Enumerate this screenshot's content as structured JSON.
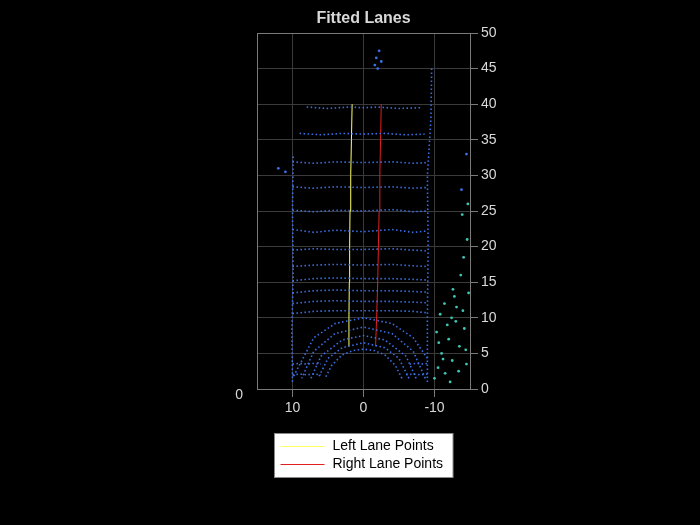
{
  "chart_data": {
    "type": "scatter",
    "title": "Fitted Lanes",
    "xlim": [
      15,
      -15
    ],
    "xticks": [
      10,
      0,
      -10
    ],
    "ylim": [
      0,
      50
    ],
    "yticks": [
      0,
      5,
      10,
      15,
      20,
      25,
      30,
      35,
      40,
      45,
      50
    ],
    "zticks": [
      0
    ],
    "grid": true,
    "legend": "bottom",
    "series": [
      {
        "name": "Left Lane Points",
        "color": "#ffff66",
        "line_style": "solid",
        "x": [
          2.1,
          2.05,
          2.0,
          1.95,
          1.9,
          1.8,
          1.7,
          1.6
        ],
        "y": [
          6,
          10,
          15,
          20,
          25,
          30,
          35,
          40
        ]
      },
      {
        "name": "Right Lane Points",
        "color": "#e0201e",
        "line_style": "solid",
        "x": [
          -1.7,
          -1.85,
          -2.0,
          -2.1,
          -2.2,
          -2.3,
          -2.4,
          -2.5
        ],
        "y": [
          6,
          10,
          15,
          20,
          25,
          30,
          35,
          40
        ]
      }
    ],
    "point_cloud": [
      {
        "color": "#3b6fe6",
        "line_style": "dotted",
        "x": [
          -5.4,
          -4.5,
          -3,
          -1.5,
          0,
          1.5,
          3,
          4.5,
          5.4
        ],
        "y": [
          1.5,
          3.3,
          4.8,
          5.4,
          5.6,
          5.4,
          4.8,
          3.3,
          1.5
        ]
      },
      {
        "color": "#3b6fe6",
        "line_style": "dotted",
        "x": [
          -6.4,
          -5,
          -3,
          0,
          3,
          5,
          6.4
        ],
        "y": [
          1.5,
          4.3,
          5.8,
          6.5,
          5.8,
          4.3,
          1.5
        ]
      },
      {
        "color": "#3b6fe6",
        "line_style": "dotted",
        "x": [
          -7.4,
          -6,
          -3,
          0,
          3,
          6,
          7.4
        ],
        "y": [
          1.5,
          4.6,
          6.9,
          7.5,
          6.9,
          4.6,
          1.5
        ]
      },
      {
        "color": "#3b6fe6",
        "line_style": "dotted",
        "x": [
          -8.7,
          -7,
          -4,
          0,
          4,
          7,
          8.7
        ],
        "y": [
          1.5,
          5.3,
          7.8,
          8.7,
          7.8,
          5.3,
          1.5
        ]
      },
      {
        "color": "#3b6fe6",
        "line_style": "dotted",
        "x": [
          -9,
          -7,
          -4,
          0,
          4,
          7,
          10
        ],
        "y": [
          4.3,
          7.2,
          9.2,
          10,
          9.2,
          7.2,
          1.5
        ]
      },
      {
        "color": "#3b6fe6",
        "line_style": "dotted",
        "x": [
          10,
          7,
          4,
          0,
          -4,
          -7,
          -9
        ],
        "y": [
          10.6,
          10.9,
          11.0,
          11.0,
          11.0,
          10.9,
          10.7
        ]
      },
      {
        "color": "#3b6fe6",
        "line_style": "dotted",
        "x": [
          10,
          7,
          4,
          0,
          -4,
          -7,
          -9
        ],
        "y": [
          12.0,
          12.3,
          12.4,
          12.3,
          12.3,
          12.2,
          12.1
        ]
      },
      {
        "color": "#3b6fe6",
        "line_style": "dotted",
        "x": [
          10,
          7,
          4,
          0,
          -4,
          -7,
          -9
        ],
        "y": [
          13.5,
          13.8,
          13.9,
          13.8,
          13.8,
          13.7,
          13.6
        ]
      },
      {
        "color": "#3b6fe6",
        "line_style": "dotted",
        "x": [
          10,
          7,
          4,
          0,
          -4,
          -7,
          -9
        ],
        "y": [
          15.2,
          15.5,
          15.6,
          15.5,
          15.5,
          15.4,
          15.3
        ]
      },
      {
        "color": "#3b6fe6",
        "line_style": "dotted",
        "x": [
          10,
          7,
          4,
          0,
          -4,
          -7,
          -9
        ],
        "y": [
          17.2,
          17.4,
          17.5,
          17.4,
          17.5,
          17.3,
          17.2
        ]
      },
      {
        "color": "#3b6fe6",
        "line_style": "dotted",
        "x": [
          10,
          7,
          4,
          0,
          -4,
          -7,
          -9
        ],
        "y": [
          19.5,
          19.7,
          19.6,
          19.6,
          19.7,
          19.5,
          19.4
        ]
      },
      {
        "color": "#3b6fe6",
        "line_style": "dotted",
        "x": [
          10,
          7,
          4,
          0,
          -4,
          -7,
          -9
        ],
        "y": [
          22.4,
          22.0,
          22.3,
          22.1,
          22.4,
          22.0,
          22.2
        ]
      },
      {
        "color": "#3b6fe6",
        "line_style": "dotted",
        "x": [
          10,
          7,
          4,
          0,
          -4,
          -7,
          -9
        ],
        "y": [
          25.1,
          24.9,
          25.1,
          25.0,
          25.2,
          24.9,
          25.0
        ]
      },
      {
        "color": "#3b6fe6",
        "line_style": "dotted",
        "x": [
          10,
          7,
          4,
          0,
          -4,
          -7,
          -9
        ],
        "y": [
          28.4,
          28.2,
          28.4,
          28.3,
          28.4,
          28.2,
          28.3
        ]
      },
      {
        "color": "#3b6fe6",
        "line_style": "dotted",
        "x": [
          10,
          7,
          4,
          0,
          -4,
          -7,
          -9
        ],
        "y": [
          31.9,
          31.7,
          31.9,
          31.8,
          31.9,
          31.7,
          31.8
        ]
      },
      {
        "color": "#3b6fe6",
        "line_style": "dotted",
        "x": [
          9,
          6,
          3,
          0,
          -3,
          -6,
          -8.6
        ],
        "y": [
          35.9,
          35.7,
          35.9,
          35.8,
          35.9,
          35.7,
          35.8
        ]
      },
      {
        "color": "#3b6fe6",
        "line_style": "dotted",
        "x": [
          8,
          5,
          2,
          0,
          -2,
          -5,
          -8
        ],
        "y": [
          39.6,
          39.4,
          39.6,
          39.5,
          39.6,
          39.4,
          39.5
        ]
      },
      {
        "color": "#3b6fe6",
        "line_style": "dotted",
        "x": [
          10,
          10.1,
          9.9,
          10,
          9.9
        ],
        "y": [
          1,
          8,
          16,
          25,
          33
        ]
      },
      {
        "color": "#3b6fe6",
        "line_style": "dotted",
        "x": [
          -9,
          -9,
          -9.1,
          -9,
          -9.5,
          -9.6
        ],
        "y": [
          1,
          10,
          20,
          30,
          38,
          45
        ]
      },
      {
        "color": "#3b6fe6",
        "line_style": "dotted",
        "x": [
          10,
          9,
          8,
          7,
          6
        ],
        "y": [
          2,
          2.1,
          2,
          2.1,
          2
        ]
      },
      {
        "color": "#3b6fe6",
        "line_style": "dotted",
        "x": [
          10,
          9,
          8,
          7,
          6
        ],
        "y": [
          3.5,
          3.6,
          3.5,
          3.6,
          3.5
        ]
      },
      {
        "color": "#3b6fe6",
        "line_style": "dotted",
        "x": [
          -6,
          -7,
          -8,
          -9
        ],
        "y": [
          2,
          2.1,
          2,
          2.1
        ]
      },
      {
        "color": "#3b6fe6",
        "line_style": "dotted",
        "x": [
          -6.5,
          -7.5,
          -8.5,
          -9
        ],
        "y": [
          3.5,
          3.6,
          3.5,
          3.6
        ]
      },
      {
        "color": "#3b6fe6",
        "marker": "circle",
        "x": [
          -2,
          -2.5,
          -1.8,
          -2.2,
          -1.6,
          11,
          12,
          -14.5,
          -13.8
        ],
        "y": [
          45,
          46,
          46.5,
          47.5,
          45.5,
          30.5,
          31,
          33,
          28
        ]
      },
      {
        "color": "#3fc5b5",
        "marker": "circle",
        "x": [
          -10,
          -10.5,
          -11,
          -11.5,
          -12,
          -12.5,
          -13,
          -13.5,
          -14,
          -14.5,
          -10.3,
          -10.8,
          -11.4,
          -12.2,
          -12.8,
          -13.4,
          -14.2,
          -14.8,
          -10.6,
          -11.8,
          -13.1,
          -14.4,
          -12.6,
          -13.7,
          -14.1,
          -14.6,
          -13.9,
          -14.7,
          -11.2,
          -12.4
        ],
        "y": [
          1.5,
          3.0,
          5.0,
          2.2,
          7.0,
          4.0,
          9.5,
          6.0,
          11.0,
          3.5,
          8.0,
          10.5,
          12.0,
          1.0,
          13.0,
          2.5,
          8.5,
          13.5,
          6.5,
          9.0,
          11.5,
          5.5,
          14.0,
          16.0,
          18.5,
          21.0,
          24.5,
          26.0,
          4.2,
          10.0
        ]
      }
    ]
  }
}
